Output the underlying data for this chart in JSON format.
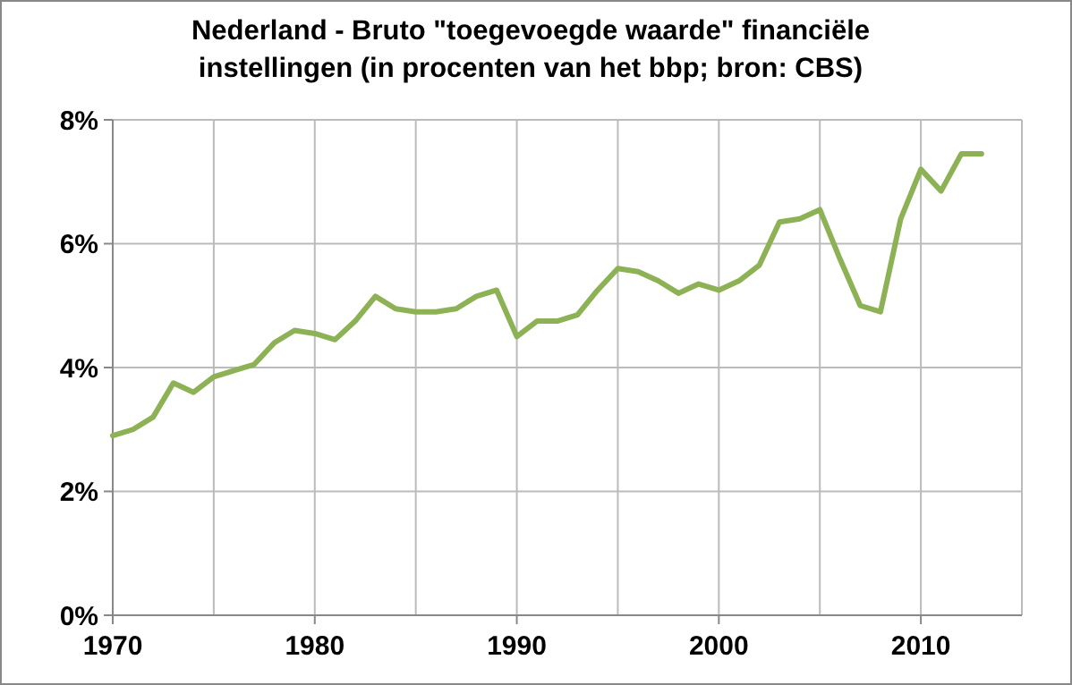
{
  "chart_data": {
    "type": "line",
    "title": "Nederland - Bruto \"toegevoegde waarde\" financiële instellingen (in procenten van het bbp; bron: CBS)",
    "x": [
      1970,
      1971,
      1972,
      1973,
      1974,
      1975,
      1976,
      1977,
      1978,
      1979,
      1980,
      1981,
      1982,
      1983,
      1984,
      1985,
      1986,
      1987,
      1988,
      1989,
      1990,
      1991,
      1992,
      1993,
      1994,
      1995,
      1996,
      1997,
      1998,
      1999,
      2000,
      2001,
      2002,
      2003,
      2004,
      2005,
      2006,
      2007,
      2008,
      2009,
      2010,
      2011,
      2012,
      2013
    ],
    "series": [
      {
        "color": "#8db255",
        "values": [
          2.9,
          3.0,
          3.2,
          3.75,
          3.6,
          3.85,
          3.95,
          4.05,
          4.4,
          4.6,
          4.55,
          4.45,
          4.75,
          5.15,
          4.95,
          4.9,
          4.9,
          4.95,
          5.15,
          5.25,
          4.5,
          4.75,
          4.75,
          4.85,
          5.25,
          5.6,
          5.55,
          5.4,
          5.2,
          5.35,
          5.25,
          5.4,
          5.65,
          6.35,
          6.4,
          6.55,
          5.75,
          5.0,
          4.9,
          6.4,
          7.2,
          6.85,
          7.45,
          7.45
        ]
      }
    ],
    "xlim": [
      1970,
      2015
    ],
    "xticks": [
      1970,
      {
        "value": 1975,
        "label": null
      },
      1980,
      {
        "value": 1985,
        "label": null
      },
      1990,
      {
        "value": 1995,
        "label": null
      },
      2000,
      {
        "value": 2005,
        "label": null
      },
      2010,
      {
        "value": 2015,
        "label": null
      }
    ],
    "ylim": [
      0,
      8
    ],
    "yticks": [
      {
        "value": 0,
        "label": "0%"
      },
      {
        "value": 2,
        "label": "2%"
      },
      {
        "value": 4,
        "label": "4%"
      },
      {
        "value": 6,
        "label": "6%"
      },
      {
        "value": 8,
        "label": "8%"
      }
    ],
    "grid": true,
    "marker": "none",
    "line_style": "solid"
  }
}
